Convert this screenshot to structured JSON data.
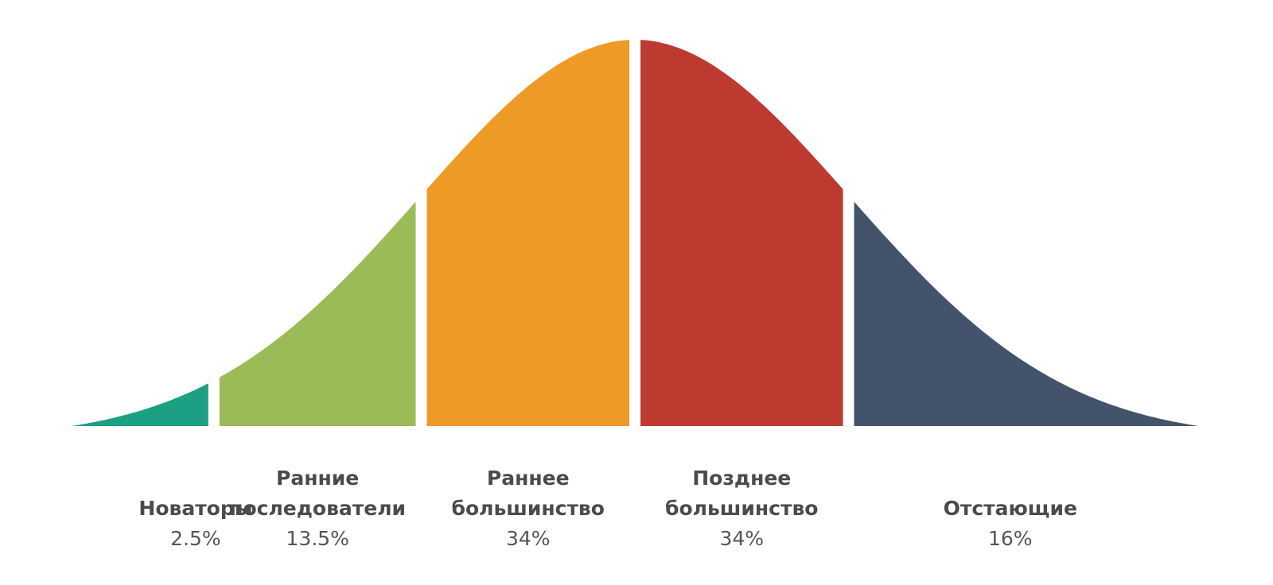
{
  "chart_data": {
    "type": "area",
    "title": "",
    "xlabel": "",
    "ylabel": "",
    "categories": [
      "Новаторы",
      "Ранние последователи",
      "Раннее большинство",
      "Позднее большинство",
      "Отстающие"
    ],
    "values_label": [
      "2.5%",
      "13.5%",
      "34%",
      "34%",
      "16%"
    ],
    "values": [
      2.5,
      13.5,
      34,
      34,
      16
    ],
    "name_lines": [
      [
        "Новаторы"
      ],
      [
        "Ранние",
        "последователи"
      ],
      [
        "Раннее",
        "большинство"
      ],
      [
        "Позднее",
        "большинство"
      ],
      [
        "Отстающие"
      ]
    ],
    "colors": [
      "#1c9f83",
      "#9bbb59",
      "#ee9a26",
      "#bd3a31",
      "#43536c"
    ],
    "curve": "normal",
    "grid": false,
    "legend": "none"
  }
}
